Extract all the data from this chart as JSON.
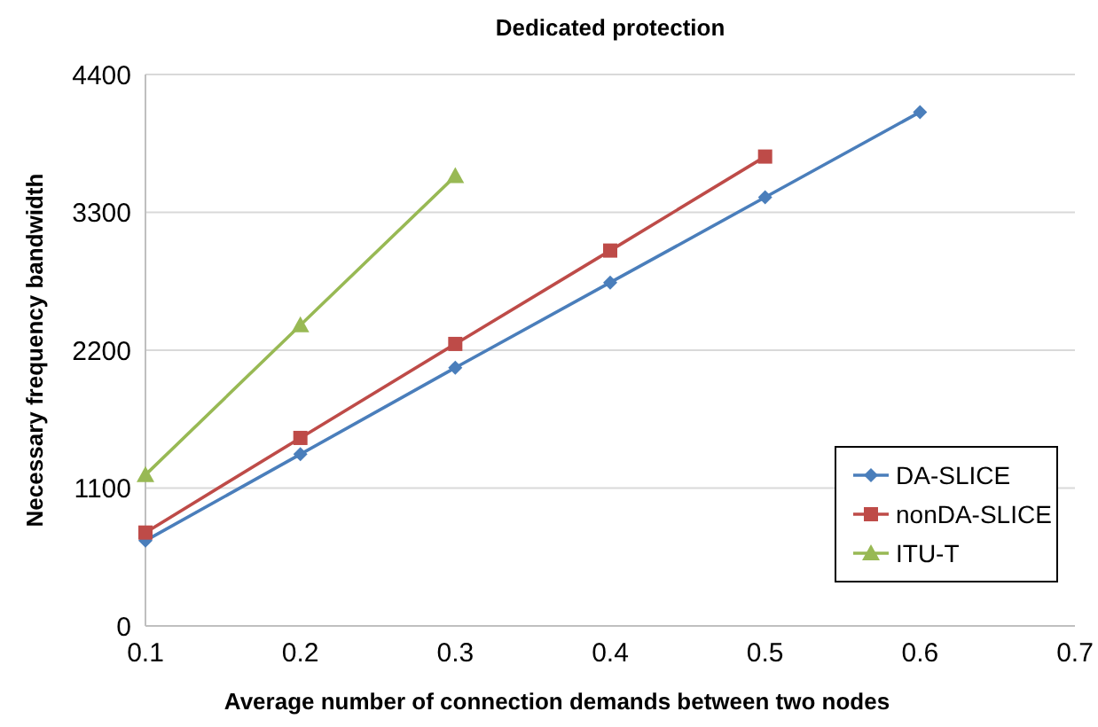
{
  "chart_data": {
    "type": "line",
    "title": "Dedicated protection",
    "xlabel": "Average number of connection demands between two nodes",
    "ylabel": "Necessary frequency bandwidth",
    "x": [
      0.1,
      0.2,
      0.3,
      0.4,
      0.5,
      0.6
    ],
    "series": [
      {
        "name": "DA-SLICE",
        "color": "#4a7ebb",
        "marker": "diamond",
        "values": [
          680,
          1370,
          2060,
          2740,
          3420,
          4100
        ]
      },
      {
        "name": "nonDA-SLICE",
        "color": "#be4b48",
        "marker": "square",
        "values": [
          745,
          1500,
          2250,
          2995,
          3745,
          null
        ]
      },
      {
        "name": "ITU-T",
        "color": "#98b954",
        "marker": "triangle",
        "values": [
          1205,
          2400,
          3590,
          null,
          null,
          null
        ]
      }
    ],
    "xlim": [
      0.1,
      0.7
    ],
    "xticks": [
      0.1,
      0.2,
      0.3,
      0.4,
      0.5,
      0.6,
      0.7
    ],
    "ylim": [
      0,
      4400
    ],
    "yticks": [
      0,
      1100,
      2200,
      3300,
      4400
    ],
    "grid": "y",
    "legend": "bottom right",
    "line_style": "solid"
  }
}
